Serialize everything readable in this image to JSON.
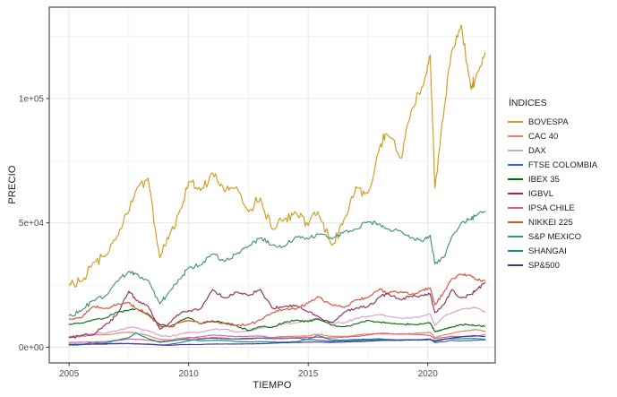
{
  "figure": {
    "background": "#ffffff",
    "panel_border": "#4f4f4f",
    "grid_major": "#e6e6e6",
    "grid_minor": "#f3f3f3",
    "tick_color": "#333333",
    "axis_text_color": "#4d4d4d",
    "axis_title_color": "#1a1a1a"
  },
  "chart_data": {
    "type": "line",
    "title": "",
    "xlabel": "TIEMPO",
    "ylabel": "PRECIO",
    "legend_title": "ÍNDICES",
    "legend_position": "right",
    "grid": true,
    "xlim": [
      2004.17,
      2022.82
    ],
    "ylim": [
      -6300,
      136700
    ],
    "x_ticks": {
      "values": [
        2005,
        2010,
        2015,
        2020
      ],
      "labels": [
        "2005",
        "2010",
        "2015",
        "2020"
      ]
    },
    "x_minor": [
      2007.5,
      2012.5,
      2017.5,
      2022.5
    ],
    "y_ticks": {
      "values": [
        0,
        50000,
        100000
      ],
      "labels": [
        "0e+00",
        "5e+04",
        "1e+05"
      ]
    },
    "y_minor": [
      25000,
      75000,
      125000
    ],
    "x": [
      2005.0,
      2005.5,
      2006.0,
      2006.5,
      2007.0,
      2007.5,
      2007.8,
      2008.3,
      2008.8,
      2009.2,
      2009.7,
      2010.0,
      2010.5,
      2011.0,
      2011.5,
      2012.0,
      2012.5,
      2013.0,
      2013.5,
      2014.0,
      2014.5,
      2015.0,
      2015.4,
      2016.0,
      2016.5,
      2017.0,
      2017.5,
      2018.0,
      2018.3,
      2018.9,
      2019.3,
      2019.8,
      2020.1,
      2020.3,
      2020.7,
      2021.0,
      2021.4,
      2021.8,
      2022.0,
      2022.4
    ],
    "series": [
      {
        "name": "BOVESPA",
        "color": "#CF9B20",
        "jitter": 2600,
        "values": [
          25500,
          26500,
          34000,
          36500,
          44500,
          54500,
          63000,
          68000,
          36000,
          45000,
          56000,
          66500,
          63000,
          70000,
          62500,
          64500,
          54500,
          60000,
          47500,
          51500,
          54000,
          49000,
          54500,
          41000,
          51500,
          64500,
          62000,
          81000,
          85500,
          76000,
          95000,
          105000,
          117500,
          64000,
          97000,
          119000,
          129500,
          104000,
          108000,
          118500
        ]
      },
      {
        "name": "CAC 40",
        "color": "#EC7D62",
        "jitter": 170,
        "values": [
          3900,
          4250,
          4900,
          5000,
          5600,
          6100,
          5750,
          4700,
          3200,
          2950,
          3650,
          3950,
          3550,
          4000,
          3750,
          3250,
          3250,
          3700,
          3950,
          4300,
          4450,
          4600,
          5250,
          4350,
          4250,
          4900,
          5300,
          5500,
          5300,
          5400,
          5450,
          5750,
          6050,
          3900,
          5000,
          5600,
          6400,
          6800,
          7150,
          6500
        ]
      },
      {
        "name": "DAX",
        "color": "#D2A1D6",
        "jitter": 380,
        "values": [
          4250,
          4600,
          5450,
          5700,
          6600,
          8000,
          7850,
          6700,
          4700,
          4200,
          5400,
          5950,
          6100,
          7050,
          7250,
          6100,
          6450,
          7750,
          8150,
          9550,
          9800,
          10900,
          11700,
          9700,
          9800,
          11600,
          12400,
          13200,
          12400,
          11600,
          11700,
          12700,
          13400,
          8750,
          12600,
          13900,
          15300,
          15700,
          15900,
          14100
        ]
      },
      {
        "name": "FTSE COLOMBIA",
        "color": "#3D63C3",
        "jitter": 110,
        "values": [
          800,
          1000,
          2000,
          1450,
          1550,
          1450,
          1350,
          1150,
          950,
          1150,
          1950,
          2650,
          3300,
          3650,
          3450,
          3350,
          3650,
          3700,
          3450,
          3500,
          3700,
          3150,
          2850,
          2350,
          2600,
          2700,
          2950,
          3050,
          3100,
          3000,
          2950,
          3100,
          3300,
          1900,
          2250,
          2800,
          2550,
          2700,
          2800,
          3000
        ]
      },
      {
        "name": "IBEX 35",
        "color": "#0B6E0B",
        "jitter": 380,
        "values": [
          9150,
          9700,
          11000,
          11700,
          14150,
          14900,
          15500,
          13100,
          9100,
          8300,
          10900,
          11900,
          9400,
          10600,
          9700,
          8600,
          6750,
          8300,
          8000,
          10050,
          10900,
          10300,
          11400,
          8900,
          8200,
          9450,
          10800,
          10100,
          9750,
          9300,
          9250,
          9400,
          9800,
          6200,
          7300,
          8100,
          9100,
          8900,
          8700,
          8500
        ]
      },
      {
        "name": "IGBVL",
        "color": "#8F3060",
        "jitter": 700,
        "values": [
          3900,
          4700,
          5100,
          8900,
          13000,
          22500,
          19000,
          16500,
          7200,
          9800,
          14000,
          14500,
          15500,
          23200,
          19800,
          22200,
          20700,
          23300,
          15700,
          16300,
          16800,
          14200,
          12500,
          9900,
          14000,
          15800,
          16300,
          20200,
          21500,
          19000,
          20500,
          20800,
          21500,
          13900,
          17500,
          23200,
          19800,
          21200,
          22800,
          26000
        ]
      },
      {
        "name": "IPSA CHILE",
        "color": "#DB5E91",
        "jitter": 130,
        "values": [
          1950,
          2000,
          2100,
          2250,
          2750,
          3350,
          3200,
          2850,
          2350,
          2600,
          3200,
          3700,
          4200,
          4900,
          4650,
          4250,
          4400,
          4550,
          3900,
          3750,
          3950,
          3950,
          4050,
          3700,
          4100,
          4350,
          4900,
          5650,
          5600,
          5250,
          5200,
          5000,
          4750,
          3500,
          3950,
          4400,
          4300,
          4300,
          4450,
          5050
        ]
      },
      {
        "name": "NIKKEI 225",
        "color": "#DA5038",
        "jitter": 650,
        "values": [
          11400,
          11800,
          16300,
          15500,
          17200,
          18100,
          15500,
          13500,
          8500,
          8100,
          10100,
          10800,
          9600,
          10300,
          9700,
          8800,
          9100,
          11000,
          13900,
          15100,
          15500,
          17800,
          20400,
          17000,
          16000,
          19100,
          20100,
          23500,
          21800,
          22300,
          21200,
          23000,
          23800,
          17000,
          22500,
          27500,
          29300,
          29000,
          27200,
          26800
        ]
      },
      {
        "name": "S&P MEXICO",
        "color": "#42937A",
        "jitter": 1000,
        "values": [
          12800,
          14500,
          18800,
          20500,
          26500,
          30500,
          29500,
          27000,
          17500,
          22500,
          28000,
          32000,
          33000,
          37500,
          34500,
          37500,
          40500,
          44000,
          41000,
          40500,
          44500,
          43500,
          45500,
          43500,
          46500,
          47500,
          50500,
          49500,
          47500,
          46500,
          44000,
          42500,
          45000,
          33500,
          36500,
          44500,
          50000,
          51500,
          53000,
          54500
        ]
      },
      {
        "name": "SHANGAI",
        "color": "#0C8F8F",
        "jitter": 130,
        "values": [
          1200,
          1100,
          1350,
          1700,
          2900,
          3900,
          5750,
          3500,
          1950,
          2500,
          3050,
          3150,
          2600,
          2800,
          2750,
          2300,
          2150,
          2300,
          2100,
          2050,
          2250,
          3300,
          4700,
          2900,
          2950,
          3150,
          3250,
          3450,
          3150,
          2750,
          3050,
          2950,
          3050,
          2750,
          3350,
          3500,
          3450,
          3550,
          3550,
          3250
        ]
      },
      {
        "name": "SP&500",
        "color": "#3E3792",
        "jitter": 90,
        "values": [
          1180,
          1210,
          1280,
          1270,
          1420,
          1520,
          1400,
          1280,
          900,
          780,
          1060,
          1120,
          1100,
          1280,
          1320,
          1310,
          1360,
          1460,
          1650,
          1830,
          1960,
          2060,
          2100,
          1940,
          2100,
          2280,
          2450,
          2750,
          2780,
          2850,
          2900,
          3050,
          3280,
          2250,
          3250,
          3750,
          4150,
          4550,
          4650,
          4250
        ]
      }
    ]
  }
}
